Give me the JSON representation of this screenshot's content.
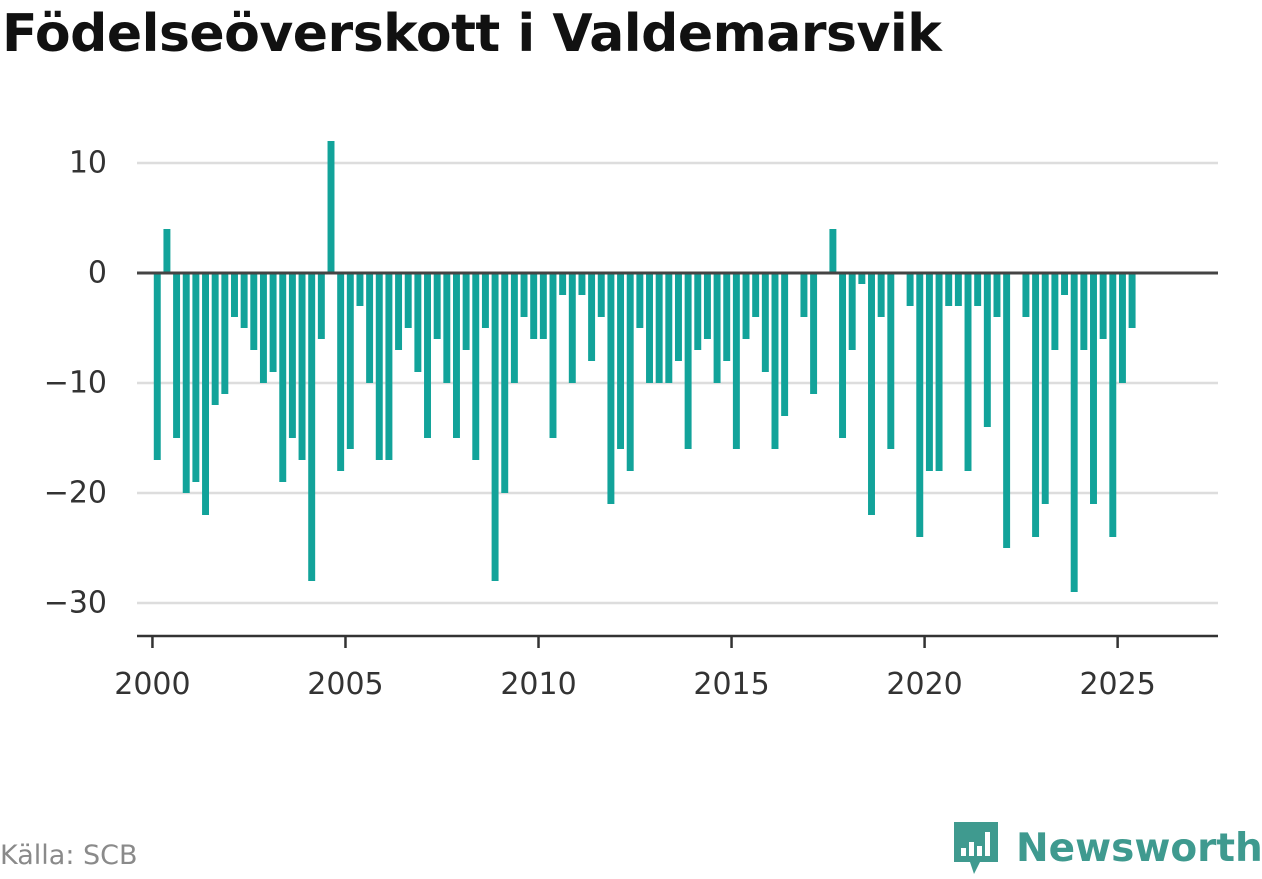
{
  "header": {
    "title": "Födelseöverskott i Valdemarsvik"
  },
  "footer": {
    "source": "Källa: SCB",
    "brand": "Newsworthy"
  },
  "colors": {
    "bar": "#12a39a",
    "zero_line": "#444444",
    "grid": "#dddddd",
    "axis": "#333333",
    "brand": "#3f9a8f"
  },
  "icons": {
    "brand_logo": "newsworthy-logo-icon"
  },
  "chart_data": {
    "type": "bar",
    "title": "Födelseöverskott i Valdemarsvik",
    "xlabel": "",
    "ylabel": "",
    "frequency": "quarterly",
    "first_period": "2000 Q1",
    "ylim": [
      -33,
      13
    ],
    "yticks": [
      10,
      0,
      -10,
      -20,
      -30
    ],
    "ytick_labels": [
      "10",
      "0",
      "−10",
      "−20",
      "−30"
    ],
    "xticks": [
      2000,
      2005,
      2010,
      2015,
      2020,
      2025
    ],
    "xtick_labels": [
      "2000",
      "2005",
      "2010",
      "2015",
      "2020",
      "2025"
    ],
    "xlim": [
      1999.6,
      2027.6
    ],
    "grid": true,
    "legend": "none",
    "values": [
      -17,
      4,
      -15,
      -20,
      -19,
      -22,
      -12,
      -11,
      -4,
      -5,
      -7,
      -10,
      -9,
      -19,
      -15,
      -17,
      -28,
      -6,
      12,
      -18,
      -16,
      -3,
      -10,
      -17,
      -17,
      -7,
      -5,
      -9,
      -15,
      -6,
      -10,
      -15,
      -7,
      -17,
      -5,
      -28,
      -20,
      -10,
      -4,
      -6,
      -6,
      -15,
      -2,
      -10,
      -2,
      -8,
      -4,
      -21,
      -16,
      -18,
      -5,
      -10,
      -10,
      -10,
      -8,
      -16,
      -7,
      -6,
      -10,
      -8,
      -16,
      -6,
      -4,
      -9,
      -16,
      -13,
      0,
      -4,
      -11,
      0,
      4,
      -15,
      -7,
      -1,
      -22,
      -4,
      -16,
      0,
      -3,
      -24,
      -18,
      -18,
      -3,
      -3,
      -18,
      -3,
      -14,
      -4,
      -25,
      0,
      -4,
      -24,
      -21,
      -7,
      -2,
      -29,
      -7,
      -21,
      -6,
      -24,
      -10,
      -5
    ]
  }
}
